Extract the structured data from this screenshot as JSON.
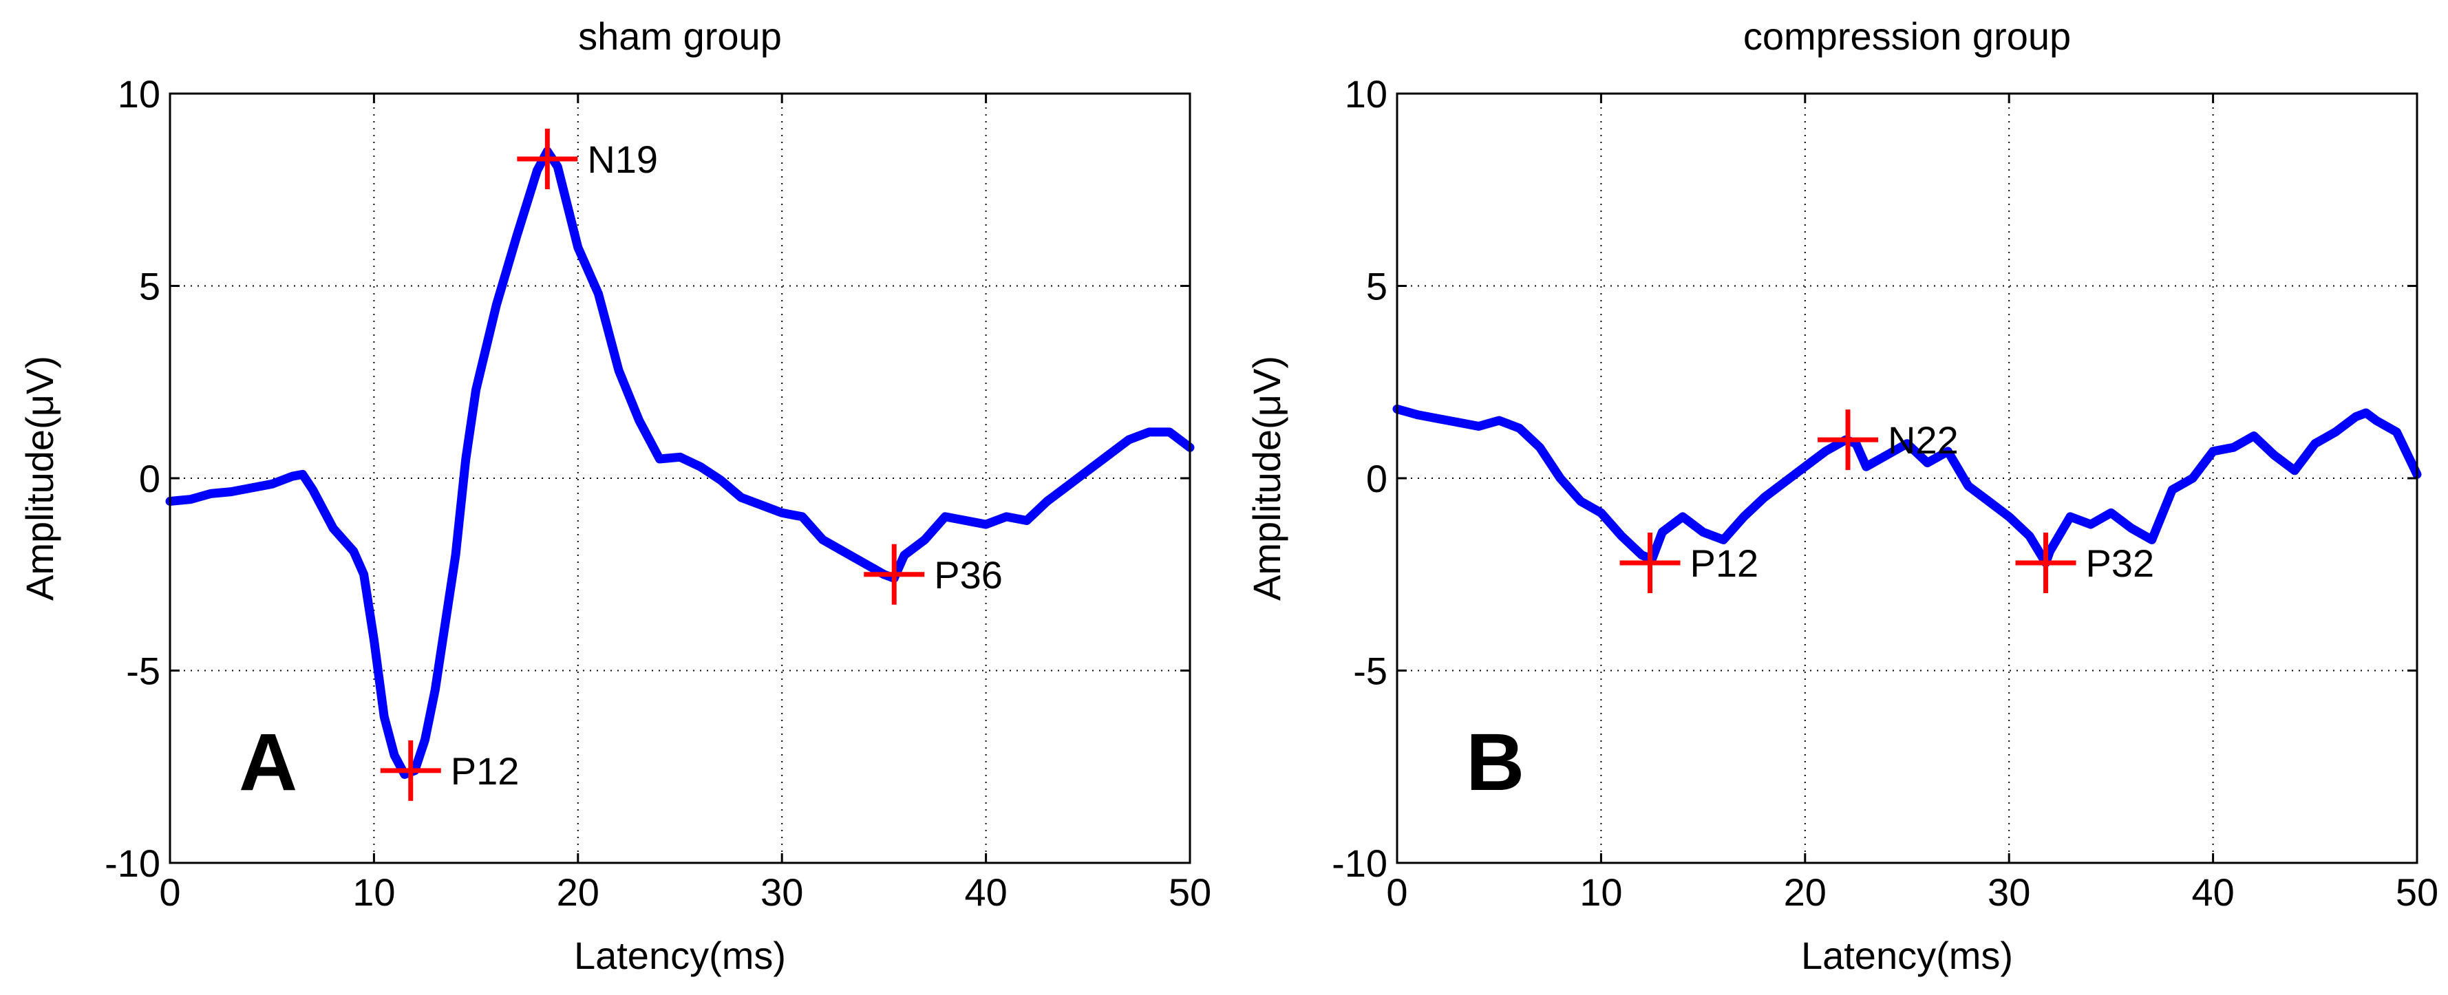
{
  "chart_data": [
    {
      "type": "line",
      "panel_letter": "A",
      "title": "sham group",
      "xlabel": "Latency(ms)",
      "ylabel": "Amplitude(μV)",
      "xlim": [
        0,
        50
      ],
      "ylim": [
        -10,
        10
      ],
      "xticks": [
        0,
        10,
        20,
        30,
        40,
        50
      ],
      "yticks": [
        -10,
        -5,
        0,
        5,
        10
      ],
      "grid": true,
      "series_color": "#0000ff",
      "marker_color": "#ff0000",
      "x": [
        0,
        1,
        2,
        3,
        4,
        5,
        6,
        6.5,
        7,
        8,
        9,
        9.5,
        10,
        10.5,
        11,
        11.5,
        12,
        12.5,
        13,
        14,
        14.5,
        15,
        16,
        17,
        18,
        18.5,
        19,
        20,
        21,
        22,
        23,
        24,
        25,
        26,
        27,
        28,
        29,
        30,
        31,
        32,
        33,
        34,
        35,
        35.5,
        36,
        37,
        38,
        39,
        40,
        41,
        42,
        43,
        44,
        45,
        46,
        47,
        48,
        49,
        50
      ],
      "values": [
        -0.6,
        -0.55,
        -0.4,
        -0.35,
        -0.25,
        -0.15,
        0.05,
        0.1,
        -0.3,
        -1.3,
        -1.9,
        -2.5,
        -4.2,
        -6.2,
        -7.2,
        -7.7,
        -7.6,
        -6.8,
        -5.5,
        -2.0,
        0.5,
        2.3,
        4.5,
        6.3,
        8.0,
        8.5,
        8.1,
        6.0,
        4.8,
        2.8,
        1.5,
        0.5,
        0.55,
        0.3,
        -0.05,
        -0.5,
        -0.7,
        -0.9,
        -1.0,
        -1.6,
        -1.9,
        -2.2,
        -2.5,
        -2.6,
        -2.0,
        -1.6,
        -1.0,
        -1.1,
        -1.2,
        -1.0,
        -1.1,
        -0.6,
        -0.2,
        0.2,
        0.6,
        1.0,
        1.2,
        1.2,
        0.8
      ],
      "annotations": [
        {
          "label": "N19",
          "x": 18.5,
          "y": 8.3
        },
        {
          "label": "P12",
          "x": 11.8,
          "y": -7.6
        },
        {
          "label": "P36",
          "x": 35.5,
          "y": -2.5
        }
      ]
    },
    {
      "type": "line",
      "panel_letter": "B",
      "title": "compression group",
      "xlabel": "Latency(ms)",
      "ylabel": "Amplitude(μV)",
      "xlim": [
        0,
        50
      ],
      "ylim": [
        -10,
        10
      ],
      "xticks": [
        0,
        10,
        20,
        30,
        40,
        50
      ],
      "yticks": [
        -10,
        -5,
        0,
        5,
        10
      ],
      "grid": true,
      "series_color": "#0000ff",
      "marker_color": "#ff0000",
      "x": [
        0,
        1,
        2,
        3,
        4,
        5,
        6,
        7,
        8,
        9,
        10,
        11,
        12,
        12.5,
        13,
        14,
        15,
        16,
        17,
        18,
        19,
        20,
        21,
        22,
        22.5,
        23,
        24,
        25,
        26,
        27,
        28,
        29,
        30,
        31,
        31.8,
        32,
        33,
        34,
        35,
        36,
        37,
        38,
        39,
        40,
        41,
        42,
        43,
        44,
        45,
        46,
        47,
        47.5,
        48,
        49,
        50
      ],
      "values": [
        1.8,
        1.65,
        1.55,
        1.45,
        1.35,
        1.5,
        1.3,
        0.8,
        0.0,
        -0.6,
        -0.9,
        -1.5,
        -2.0,
        -2.1,
        -1.4,
        -1.0,
        -1.4,
        -1.6,
        -1.0,
        -0.5,
        -0.1,
        0.3,
        0.7,
        1.0,
        0.9,
        0.3,
        0.6,
        0.9,
        0.4,
        0.7,
        -0.2,
        -0.6,
        -1.0,
        -1.5,
        -2.2,
        -1.9,
        -1.0,
        -1.2,
        -0.9,
        -1.3,
        -1.6,
        -0.3,
        0.0,
        0.7,
        0.8,
        1.1,
        0.6,
        0.2,
        0.9,
        1.2,
        1.6,
        1.7,
        1.5,
        1.2,
        0.1
      ],
      "annotations": [
        {
          "label": "N22",
          "x": 22.1,
          "y": 1.0
        },
        {
          "label": "P12",
          "x": 12.4,
          "y": -2.2
        },
        {
          "label": "P32",
          "x": 31.8,
          "y": -2.2
        }
      ]
    }
  ]
}
